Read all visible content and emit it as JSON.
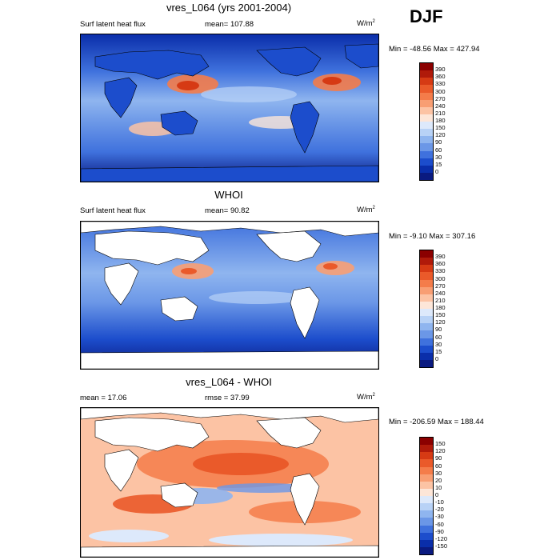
{
  "season": "DJF",
  "panels": [
    {
      "title": "vres_L064 (yrs 2001-2004)",
      "left_label": "Surf latent heat flux",
      "center_label": "mean= 107.88",
      "units_base": "W/m",
      "units_exp": "2",
      "minmax": "Min = -48.56 Max = 427.94"
    },
    {
      "title": "WHOI",
      "left_label": "Surf latent heat flux",
      "center_label": "mean=  90.82",
      "units_base": "W/m",
      "units_exp": "2",
      "minmax": "Min =  -9.10 Max = 307.16"
    },
    {
      "title": "vres_L064 - WHOI",
      "left_label": "mean =  17.06",
      "center_label": "rmse =  37.99",
      "units_base": "W/m",
      "units_exp": "2",
      "minmax": "Min = -206.59 Max = 188.44"
    }
  ],
  "colorbars": {
    "absolute": {
      "labels": [
        "390",
        "360",
        "330",
        "300",
        "270",
        "240",
        "210",
        "180",
        "150",
        "120",
        "90",
        "60",
        "30",
        "15",
        "0"
      ],
      "colors": [
        "#8b0000",
        "#b01a0a",
        "#d63a14",
        "#ea5a2a",
        "#f47c4a",
        "#f89e73",
        "#fcc3a4",
        "#fde6d8",
        "#dde9fb",
        "#b8d2f6",
        "#8fb5ef",
        "#6b97e7",
        "#3f71dd",
        "#1c4dcc",
        "#0a2eaa",
        "#0a1a80"
      ]
    },
    "difference": {
      "labels": [
        "150",
        "120",
        "90",
        "60",
        "30",
        "20",
        "10",
        "0",
        "-10",
        "-20",
        "-30",
        "-60",
        "-90",
        "-120",
        "-150"
      ],
      "colors": [
        "#8b0000",
        "#b01a0a",
        "#d63a14",
        "#ea5a2a",
        "#f47c4a",
        "#f89e73",
        "#fcc3a4",
        "#fde6d8",
        "#dde9fb",
        "#b8d2f6",
        "#8fb5ef",
        "#6b97e7",
        "#3f71dd",
        "#1c4dcc",
        "#0a2eaa",
        "#0a1a80"
      ]
    }
  },
  "colors": {
    "land": "#ffffff",
    "outline": "#000000"
  }
}
